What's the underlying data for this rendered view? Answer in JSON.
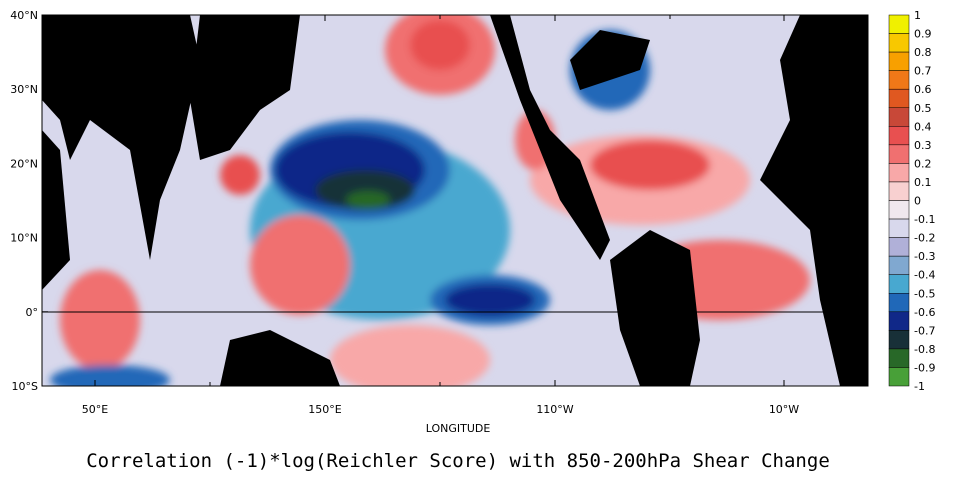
{
  "title": "Correlation (-1)*log(Reichler Score) with 850-200hPa Shear Change",
  "x_axis_label": "LONGITUDE",
  "lat_labels": [
    "40°N",
    "30°N",
    "20°N",
    "10°N",
    "0°",
    "10°S"
  ],
  "lon_labels": [
    "50°E",
    "150°E",
    "110°W",
    "10°W"
  ],
  "colorbar": {
    "labels": [
      1,
      0.9,
      0.8,
      0.7,
      0.6,
      0.5,
      0.4,
      0.3,
      0.2,
      0.1,
      0,
      -0.1,
      -0.2,
      -0.3,
      -0.4,
      -0.5,
      -0.6,
      -0.7,
      -0.8,
      -0.9,
      -1
    ],
    "colors": [
      "#f0f000",
      "#f8c800",
      "#f8a000",
      "#f07818",
      "#e05820",
      "#c84838",
      "#e85050",
      "#f07070",
      "#f8a8a8",
      "#f8d0d0",
      "#f0e8ee",
      "#d8d8ec",
      "#b0b0d8",
      "#80a8d0",
      "#48a8d0",
      "#2068b8",
      "#102888",
      "#183038",
      "#286828",
      "#48a038",
      "#a8d840"
    ]
  }
}
